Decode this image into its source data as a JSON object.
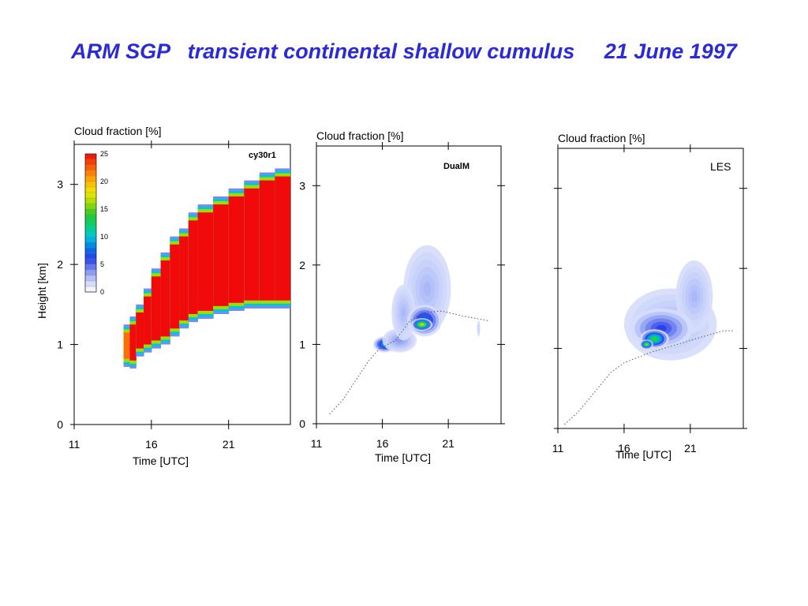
{
  "slide": {
    "title": "ARM SGP   transient continental shallow cumulus     21 June 1997",
    "accent_color": "#2a2ad6"
  },
  "chart_data": [
    {
      "type": "heatmap",
      "title": "Cloud fraction [%]",
      "model_label": "cy30r1",
      "xlabel": "Time  [UTC]",
      "ylabel": "Height  [km]",
      "xticks": [
        "11",
        "16",
        "21"
      ],
      "yticks": [
        "0",
        "1",
        "2",
        "3"
      ],
      "xlim": [
        11,
        25
      ],
      "ylim": [
        0,
        3.5
      ],
      "colorbar": {
        "ticks": [
          "0",
          "5",
          "10",
          "15",
          "20",
          "25"
        ],
        "range": [
          0,
          25
        ]
      },
      "cloud_layer": [
        {
          "t": 14.2,
          "base": 0.82,
          "top": 1.15,
          "cf": 22
        },
        {
          "t": 14.6,
          "base": 0.8,
          "top": 1.25,
          "cf": 25
        },
        {
          "t": 15.0,
          "base": 0.95,
          "top": 1.4,
          "cf": 25
        },
        {
          "t": 15.5,
          "base": 1.0,
          "top": 1.6,
          "cf": 25
        },
        {
          "t": 16.0,
          "base": 1.05,
          "top": 1.85,
          "cf": 25
        },
        {
          "t": 16.6,
          "base": 1.1,
          "top": 2.05,
          "cf": 25
        },
        {
          "t": 17.2,
          "base": 1.2,
          "top": 2.25,
          "cf": 25
        },
        {
          "t": 17.8,
          "base": 1.3,
          "top": 2.35,
          "cf": 25
        },
        {
          "t": 18.4,
          "base": 1.38,
          "top": 2.55,
          "cf": 25
        },
        {
          "t": 19.0,
          "base": 1.42,
          "top": 2.65,
          "cf": 25
        },
        {
          "t": 20.0,
          "base": 1.48,
          "top": 2.75,
          "cf": 25
        },
        {
          "t": 21.0,
          "base": 1.52,
          "top": 2.85,
          "cf": 25
        },
        {
          "t": 22.0,
          "base": 1.55,
          "top": 2.95,
          "cf": 25
        },
        {
          "t": 23.0,
          "base": 1.55,
          "top": 3.05,
          "cf": 25
        },
        {
          "t": 24.0,
          "base": 1.55,
          "top": 3.1,
          "cf": 25
        },
        {
          "t": 25.0,
          "base": 1.55,
          "top": 3.1,
          "cf": 25
        }
      ]
    },
    {
      "type": "heatmap",
      "title": "Cloud fraction [%]",
      "model_label": "DualM",
      "xlabel": "Time  [UTC]",
      "ylabel": "",
      "xticks": [
        "11",
        "16",
        "21"
      ],
      "yticks": [
        "0",
        "1",
        "2",
        "3"
      ],
      "xlim": [
        11,
        25
      ],
      "ylim": [
        0,
        3.5
      ],
      "blobs": [
        {
          "t": 16.2,
          "z": 1.0,
          "rt": 0.9,
          "rz": 0.1,
          "cf": 12
        },
        {
          "t": 17.3,
          "z": 1.05,
          "rt": 1.3,
          "rz": 0.15,
          "cf": 4
        },
        {
          "t": 19.4,
          "z": 1.7,
          "rt": 1.8,
          "rz": 0.55,
          "cf": 3
        },
        {
          "t": 17.6,
          "z": 1.4,
          "rt": 0.9,
          "rz": 0.35,
          "cf": 3
        },
        {
          "t": 19.2,
          "z": 1.3,
          "rt": 1.3,
          "rz": 0.2,
          "cf": 10
        },
        {
          "t": 19.0,
          "z": 1.25,
          "rt": 0.8,
          "rz": 0.08,
          "cf": 22
        },
        {
          "t": 23.3,
          "z": 1.2,
          "rt": 0.12,
          "rz": 0.1,
          "cf": 2
        }
      ],
      "reference_curve": [
        {
          "t": 12.0,
          "z": 0.12
        },
        {
          "t": 13.0,
          "z": 0.3
        },
        {
          "t": 14.0,
          "z": 0.55
        },
        {
          "t": 15.0,
          "z": 0.8
        },
        {
          "t": 15.8,
          "z": 0.95
        },
        {
          "t": 17.0,
          "z": 1.05
        },
        {
          "t": 18.0,
          "z": 1.28
        },
        {
          "t": 19.0,
          "z": 1.4
        },
        {
          "t": 20.5,
          "z": 1.42
        },
        {
          "t": 22.0,
          "z": 1.36
        },
        {
          "t": 24.0,
          "z": 1.3
        }
      ]
    },
    {
      "type": "heatmap",
      "title": "Cloud fraction [%]",
      "model_label": "LES",
      "xlabel": "Time  [UTC]",
      "ylabel": "",
      "xticks": [
        "11",
        "16",
        "21"
      ],
      "yticks": [],
      "xlim": [
        11,
        25
      ],
      "ylim": [
        0,
        3.5
      ],
      "blobs": [
        {
          "t": 19.5,
          "z": 1.3,
          "rt": 3.5,
          "rz": 0.45,
          "cf": 3
        },
        {
          "t": 21.3,
          "z": 1.65,
          "rt": 1.4,
          "rz": 0.45,
          "cf": 3
        },
        {
          "t": 18.8,
          "z": 1.25,
          "rt": 2.4,
          "rz": 0.25,
          "cf": 7
        },
        {
          "t": 18.3,
          "z": 1.12,
          "rt": 1.1,
          "rz": 0.12,
          "cf": 17
        },
        {
          "t": 17.7,
          "z": 1.05,
          "rt": 0.5,
          "rz": 0.06,
          "cf": 20
        }
      ],
      "reference_curve": [
        {
          "t": 11.5,
          "z": 0.05
        },
        {
          "t": 12.5,
          "z": 0.2
        },
        {
          "t": 14.0,
          "z": 0.5
        },
        {
          "t": 15.0,
          "z": 0.7
        },
        {
          "t": 16.0,
          "z": 0.82
        },
        {
          "t": 18.0,
          "z": 0.95
        },
        {
          "t": 20.0,
          "z": 1.05
        },
        {
          "t": 22.0,
          "z": 1.15
        },
        {
          "t": 23.5,
          "z": 1.22
        },
        {
          "t": 24.3,
          "z": 1.22
        }
      ]
    }
  ]
}
